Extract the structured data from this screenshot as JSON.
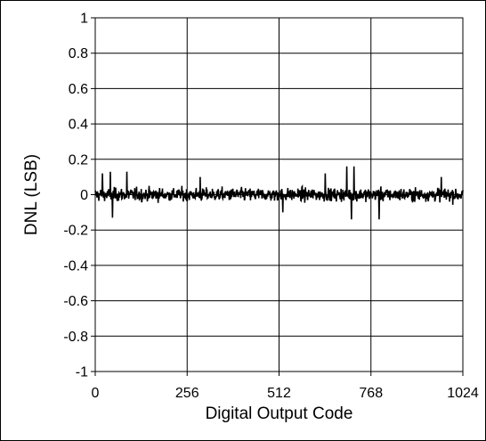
{
  "chart_data": {
    "type": "line",
    "title": "",
    "xlabel": "Digital Output Code",
    "ylabel": "DNL (LSB)",
    "xlim": [
      0,
      1024
    ],
    "ylim": [
      -1,
      1
    ],
    "x_ticks": [
      0,
      256,
      512,
      768,
      1024
    ],
    "y_ticks": [
      -1,
      -0.8,
      -0.6,
      -0.4,
      -0.2,
      0,
      0.2,
      0.4,
      0.6,
      0.8,
      1
    ],
    "x_tick_labels": [
      "0",
      "256",
      "512",
      "768",
      "1024"
    ],
    "y_tick_labels": [
      "-1",
      "-0.8",
      "-0.6",
      "-0.4",
      "-0.2",
      "0",
      "0.2",
      "0.4",
      "0.6",
      "0.8",
      "1"
    ],
    "grid": true,
    "legend": "none",
    "series": [
      {
        "color": "#000000",
        "num_codes": 1024,
        "amplitude_typical": 0.03,
        "min": -0.14,
        "max": 0.16,
        "peaks": [
          {
            "x": 20,
            "y": 0.12
          },
          {
            "x": 42,
            "y": 0.13
          },
          {
            "x": 48,
            "y": -0.13
          },
          {
            "x": 88,
            "y": 0.13
          },
          {
            "x": 292,
            "y": 0.1
          },
          {
            "x": 522,
            "y": -0.1
          },
          {
            "x": 640,
            "y": 0.12
          },
          {
            "x": 700,
            "y": 0.16
          },
          {
            "x": 713,
            "y": -0.14
          },
          {
            "x": 720,
            "y": 0.16
          },
          {
            "x": 790,
            "y": -0.14
          },
          {
            "x": 963,
            "y": 0.1
          }
        ]
      }
    ]
  }
}
